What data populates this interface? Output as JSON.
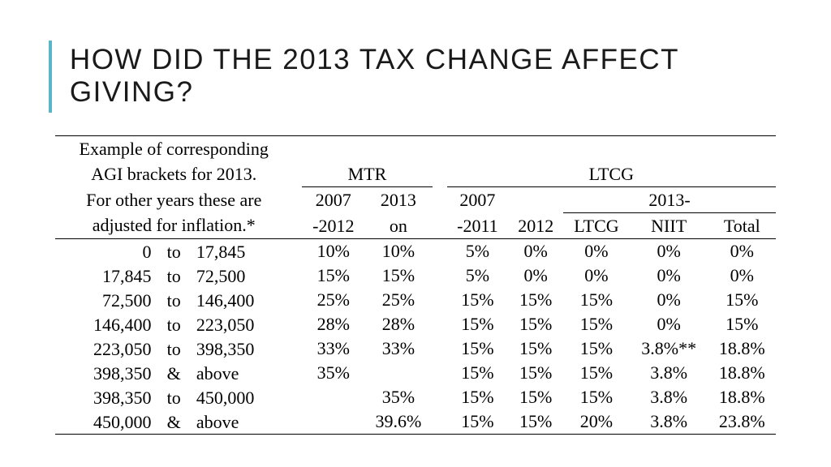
{
  "title": "HOW DID THE 2013 TAX CHANGE AFFECT GIVING?",
  "accent_color": "#5bb5c9",
  "text_color": "#000000",
  "background_color": "#ffffff",
  "title_fontsize": 35,
  "body_fontsize": 22,
  "desc": {
    "l1": "Example of corresponding",
    "l2": "AGI brackets for 2013.",
    "l3": "For other years these are",
    "l4": "adjusted for inflation.*"
  },
  "groups": {
    "mtr": "MTR",
    "ltcg": "LTCG"
  },
  "head": {
    "mtr_a": "2007",
    "mtr_a2": "-2012",
    "mtr_b": "2013",
    "mtr_b2": "on",
    "ltcg_a": "2007",
    "ltcg_a2": "-2011",
    "ltcg_b": "2012",
    "ltcg_2013": "2013-",
    "sub_ltcg": "LTCG",
    "sub_niit": "NIIT",
    "sub_total": "Total"
  },
  "rows": [
    {
      "from": "0",
      "sep": "to",
      "to": "17,845",
      "mtr1": "10%",
      "mtr2": "10%",
      "l1": "5%",
      "l2": "0%",
      "l3": "0%",
      "l4": "0%",
      "l5": "0%"
    },
    {
      "from": "17,845",
      "sep": "to",
      "to": "72,500",
      "mtr1": "15%",
      "mtr2": "15%",
      "l1": "5%",
      "l2": "0%",
      "l3": "0%",
      "l4": "0%",
      "l5": "0%"
    },
    {
      "from": "72,500",
      "sep": "to",
      "to": "146,400",
      "mtr1": "25%",
      "mtr2": "25%",
      "l1": "15%",
      "l2": "15%",
      "l3": "15%",
      "l4": "0%",
      "l5": "15%"
    },
    {
      "from": "146,400",
      "sep": "to",
      "to": "223,050",
      "mtr1": "28%",
      "mtr2": "28%",
      "l1": "15%",
      "l2": "15%",
      "l3": "15%",
      "l4": "0%",
      "l5": "15%"
    },
    {
      "from": "223,050",
      "sep": "to",
      "to": "398,350",
      "mtr1": "33%",
      "mtr2": "33%",
      "l1": "15%",
      "l2": "15%",
      "l3": "15%",
      "l4": "3.8%**",
      "l5": "18.8%"
    },
    {
      "from": "398,350",
      "sep": "&",
      "to": "above",
      "mtr1": "35%",
      "mtr2": "",
      "l1": "15%",
      "l2": "15%",
      "l3": "15%",
      "l4": "3.8%",
      "l5": "18.8%"
    },
    {
      "from": "398,350",
      "sep": "to",
      "to": "450,000",
      "mtr1": "",
      "mtr2": "35%",
      "l1": "15%",
      "l2": "15%",
      "l3": "15%",
      "l4": "3.8%",
      "l5": "18.8%"
    },
    {
      "from": "450,000",
      "sep": "&",
      "to": "above",
      "mtr1": "",
      "mtr2": "39.6%",
      "l1": "15%",
      "l2": "15%",
      "l3": "20%",
      "l4": "3.8%",
      "l5": "23.8%"
    }
  ]
}
